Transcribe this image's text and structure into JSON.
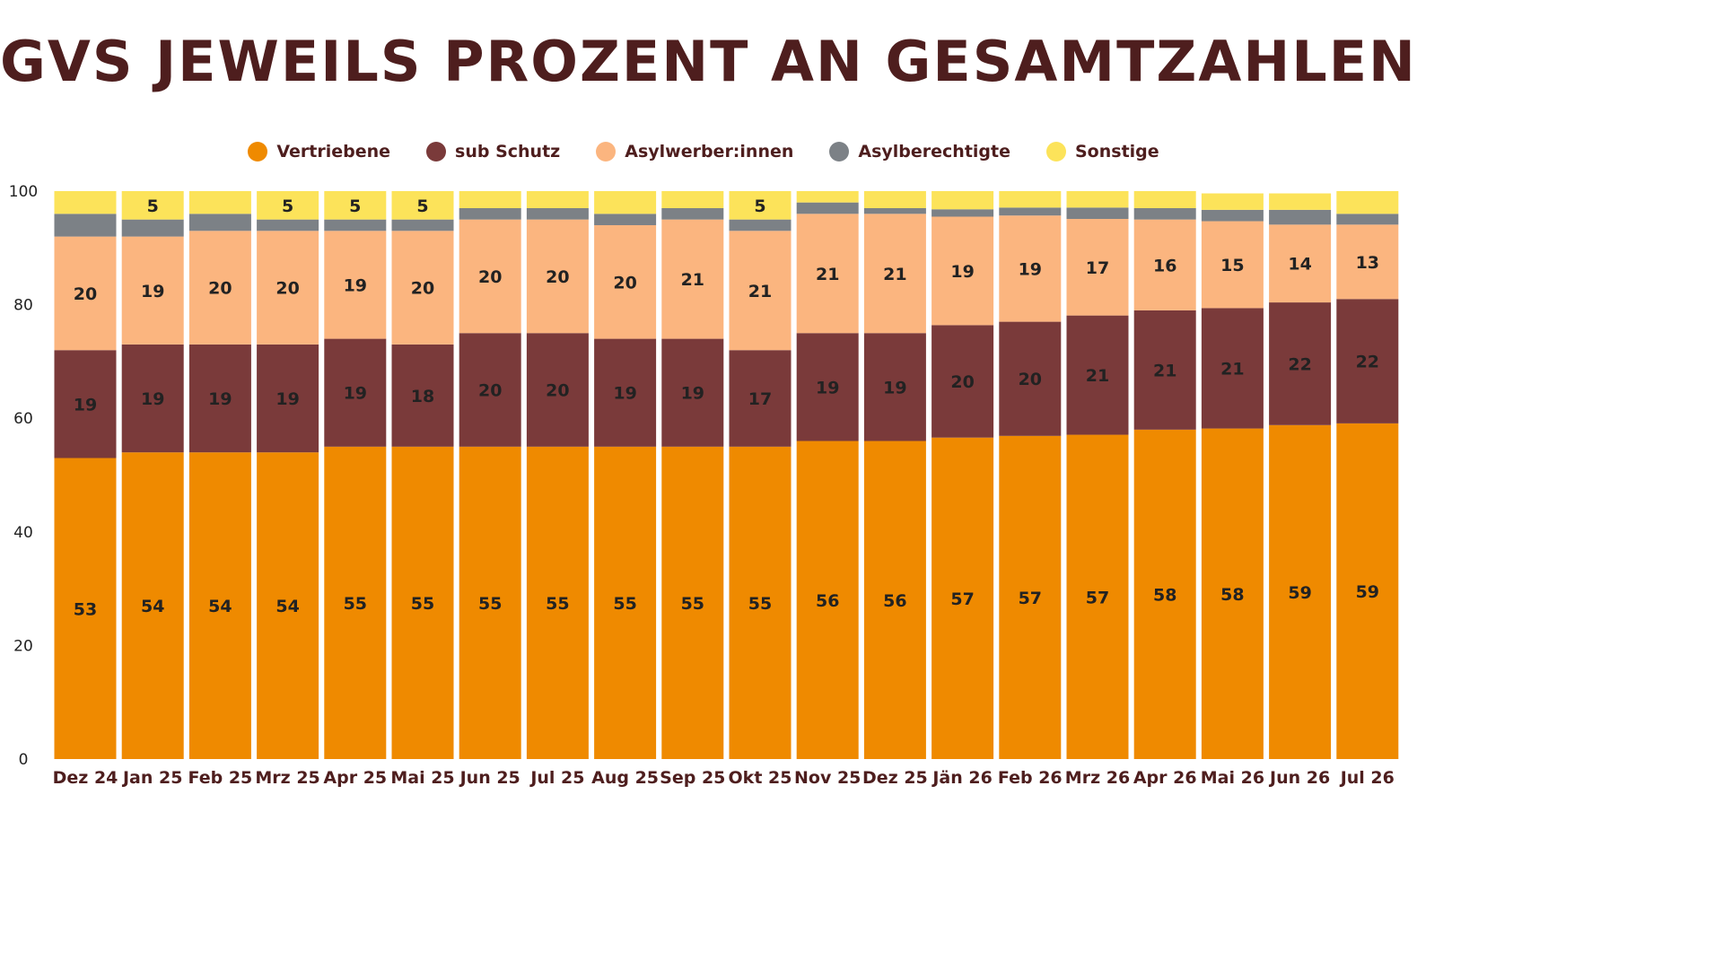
{
  "chart_data": {
    "type": "bar",
    "stacked": true,
    "title": "GVS JEWEILS PROZENT AN GESAMTZAHLEN",
    "ylim": [
      0,
      100
    ],
    "yticks": [
      0,
      20,
      40,
      60,
      80,
      100
    ],
    "grid": false,
    "legend_position": "top-center",
    "categories": [
      "Dez 24",
      "Jan 25",
      "Feb 25",
      "Mrz 25",
      "Apr 25",
      "Mai 25",
      "Jun 25",
      "Jul 25",
      "Aug 25",
      "Sep 25",
      "Okt 25",
      "Nov 25",
      "Dez 25",
      "Jän 26",
      "Feb 26",
      "Mrz 26",
      "Apr 26",
      "Mai 26",
      "Jun 26",
      "Jul 26"
    ],
    "series": [
      {
        "name": "Vertriebene",
        "color": "#ef8a00",
        "values": [
          53,
          54,
          54,
          54,
          55,
          55,
          55,
          55,
          55,
          55,
          55,
          56,
          56,
          56.6,
          56.9,
          57.1,
          58,
          58.2,
          58.8,
          59.1
        ],
        "labels": [
          "53",
          "54",
          "54",
          "54",
          "55",
          "55",
          "55",
          "55",
          "55",
          "55",
          "55",
          "56",
          "56",
          "57",
          "57",
          "57",
          "58",
          "58",
          "59",
          "59"
        ]
      },
      {
        "name": "sub Schutz",
        "color": "#7a3a3a",
        "values": [
          19,
          19,
          19,
          19,
          19,
          18,
          20,
          20,
          19,
          19,
          17,
          19,
          19,
          19.8,
          20.1,
          21,
          21,
          21.2,
          21.6,
          21.9
        ],
        "labels": [
          "19",
          "19",
          "19",
          "19",
          "19",
          "18",
          "20",
          "20",
          "19",
          "19",
          "17",
          "19",
          "19",
          "20",
          "20",
          "21",
          "21",
          "21",
          "22",
          "22"
        ]
      },
      {
        "name": "Asylwerber:innen",
        "color": "#fbb57f",
        "values": [
          20,
          19,
          20,
          20,
          19,
          20,
          20,
          20,
          20,
          21,
          21,
          21,
          21,
          19.1,
          18.7,
          17,
          16,
          15.3,
          13.7,
          13.1
        ],
        "labels": [
          "20",
          "19",
          "20",
          "20",
          "19",
          "20",
          "20",
          "20",
          "20",
          "21",
          "21",
          "21",
          "21",
          "19",
          "19",
          "17",
          "16",
          "15",
          "14",
          "13"
        ]
      },
      {
        "name": "Asylberechtigte",
        "color": "#7c8186",
        "values": [
          4,
          3,
          3,
          2,
          2,
          2,
          2,
          2,
          2,
          2,
          2,
          2,
          1,
          1.3,
          1.4,
          2,
          2,
          2,
          2.6,
          1.9
        ],
        "labels": [
          "",
          "",
          "",
          "",
          "",
          "",
          "",
          "",
          "",
          "",
          "",
          "",
          "",
          "",
          "",
          "",
          "",
          "",
          "",
          ""
        ]
      },
      {
        "name": "Sonstige",
        "color": "#fce35a",
        "values": [
          4,
          5,
          4,
          5,
          5,
          5,
          3,
          3,
          4,
          3,
          5,
          2,
          3,
          3.2,
          2.9,
          2.9,
          3,
          2.9,
          2.9,
          4
        ],
        "labels": [
          "",
          "5",
          "",
          "5",
          "5",
          "5",
          "",
          "",
          "",
          "",
          "5",
          "",
          "",
          "",
          "",
          "",
          "",
          "",
          "",
          ""
        ]
      }
    ]
  }
}
